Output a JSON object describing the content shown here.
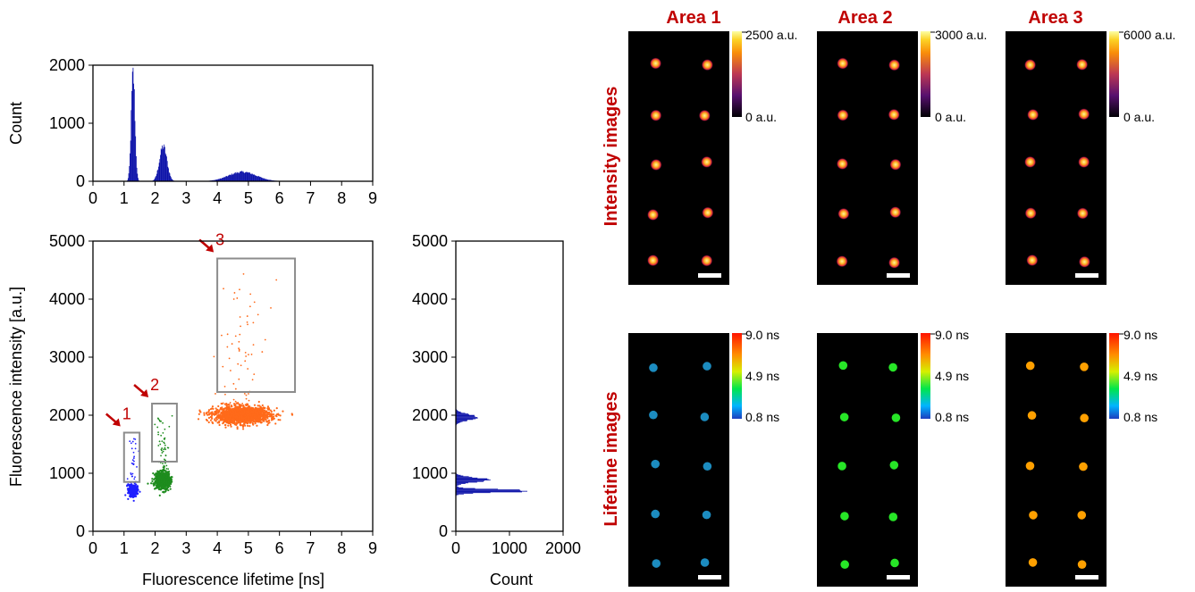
{
  "colors": {
    "hist": "#0a10a8",
    "group1": "#1f1fff",
    "group2": "#1e8c1e",
    "group3": "#ff6a1a",
    "gate": "#8c8c8c",
    "arrow": "#c00000",
    "rowlabel": "#c00000",
    "panel": "#000000"
  },
  "chart_data": [
    {
      "id": "lifetime-histogram",
      "type": "bar",
      "title": "",
      "xlabel": "",
      "ylabel": "Count",
      "xlim": [
        0,
        9
      ],
      "ylim": [
        0,
        2000
      ],
      "xticks": [
        0,
        1,
        2,
        3,
        4,
        5,
        6,
        7,
        8,
        9
      ],
      "yticks": [
        0,
        1000,
        2000
      ],
      "peaks": [
        {
          "center": 1.28,
          "sigma": 0.06,
          "height": 1850
        },
        {
          "center": 2.25,
          "sigma": 0.12,
          "height": 600
        },
        {
          "center": 4.8,
          "sigma": 0.45,
          "height": 160
        }
      ]
    },
    {
      "id": "lifetime-intensity-scatter",
      "type": "scatter",
      "title": "",
      "xlabel": "Fluorescence lifetime [ns]",
      "ylabel": "Fluorescence intensity [a.u.]",
      "xlim": [
        0,
        9
      ],
      "ylim": [
        0,
        5000
      ],
      "xticks": [
        0,
        1,
        2,
        3,
        4,
        5,
        6,
        7,
        8,
        9
      ],
      "yticks": [
        0,
        1000,
        2000,
        3000,
        4000,
        5000
      ],
      "series": [
        {
          "name": "1",
          "center": [
            1.28,
            700
          ],
          "spread": [
            0.07,
            50
          ]
        },
        {
          "name": "2",
          "center": [
            2.25,
            880
          ],
          "spread": [
            0.12,
            70
          ]
        },
        {
          "name": "3",
          "center": [
            4.8,
            2000
          ],
          "spread": [
            0.45,
            70
          ]
        }
      ],
      "gates": [
        {
          "label": "1",
          "x": [
            1.0,
            1.5
          ],
          "y": [
            850,
            1700
          ]
        },
        {
          "label": "2",
          "x": [
            1.9,
            2.7
          ],
          "y": [
            1200,
            2200
          ]
        },
        {
          "label": "3",
          "x": [
            4.0,
            6.5
          ],
          "y": [
            2400,
            4700
          ]
        }
      ]
    },
    {
      "id": "intensity-histogram",
      "type": "bar",
      "title": "",
      "xlabel": "Count",
      "ylabel": "",
      "xlim": [
        0,
        2000
      ],
      "ylim": [
        0,
        5000
      ],
      "xticks": [
        0,
        1000,
        2000
      ],
      "yticks": [
        0,
        1000,
        2000,
        3000,
        4000,
        5000
      ],
      "peaks": [
        {
          "center": 690,
          "sigma": 25,
          "height": 1450
        },
        {
          "center": 880,
          "sigma": 40,
          "height": 600
        },
        {
          "center": 1960,
          "sigma": 50,
          "height": 430
        }
      ]
    }
  ],
  "image_panels": {
    "columns": [
      "Area 1",
      "Area 2",
      "Area 3"
    ],
    "rows": [
      {
        "label": "Intensity images",
        "scale": "intensity",
        "colorbars": [
          [
            "2500 a.u.",
            "0 a.u."
          ],
          [
            "3000 a.u.",
            "0 a.u."
          ],
          [
            "6000 a.u.",
            "0 a.u."
          ]
        ]
      },
      {
        "label": "Lifetime images",
        "scale": "lifetime",
        "colorbars": [
          [
            "9.0 ns",
            "4.9 ns",
            "0.8 ns"
          ],
          [
            "9.0 ns",
            "4.9 ns",
            "0.8 ns"
          ],
          [
            "9.0 ns",
            "4.9 ns",
            "0.8 ns"
          ]
        ]
      }
    ],
    "cell_colors": {
      "area1_lifetime": "#1c8cc0",
      "area2_lifetime": "#27e627",
      "area3_lifetime": "#ffa000"
    }
  }
}
